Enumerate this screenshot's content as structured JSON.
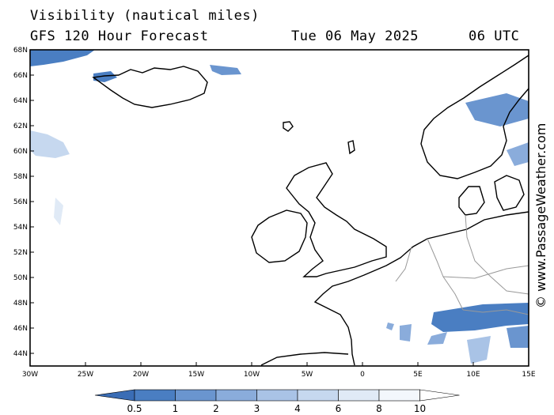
{
  "title": "Visibility (nautical miles)",
  "subtitle": "GFS 120 Hour Forecast",
  "date": "Tue 06 May 2025",
  "time": "06 UTC",
  "credit": "© www.PassageWeather.com",
  "map": {
    "lon_range": [
      -30,
      15
    ],
    "lat_range": [
      43,
      68
    ],
    "lat_ticks": [
      "44N",
      "46N",
      "48N",
      "50N",
      "52N",
      "54N",
      "56N",
      "58N",
      "60N",
      "62N",
      "64N",
      "66N",
      "68N"
    ],
    "lon_ticks": [
      "30W",
      "25W",
      "20W",
      "15W",
      "10W",
      "5W",
      "0",
      "5E",
      "10E",
      "15E"
    ]
  },
  "legend": {
    "labels": [
      "0.5",
      "1",
      "2",
      "3",
      "4",
      "6",
      "8",
      "10"
    ],
    "colors": [
      "#3a6db5",
      "#4a7ec2",
      "#6a95cf",
      "#8aacdb",
      "#a9c3e6",
      "#c6d8ef",
      "#e0eaf6",
      "#f3f7fc",
      "#ffffff"
    ]
  }
}
